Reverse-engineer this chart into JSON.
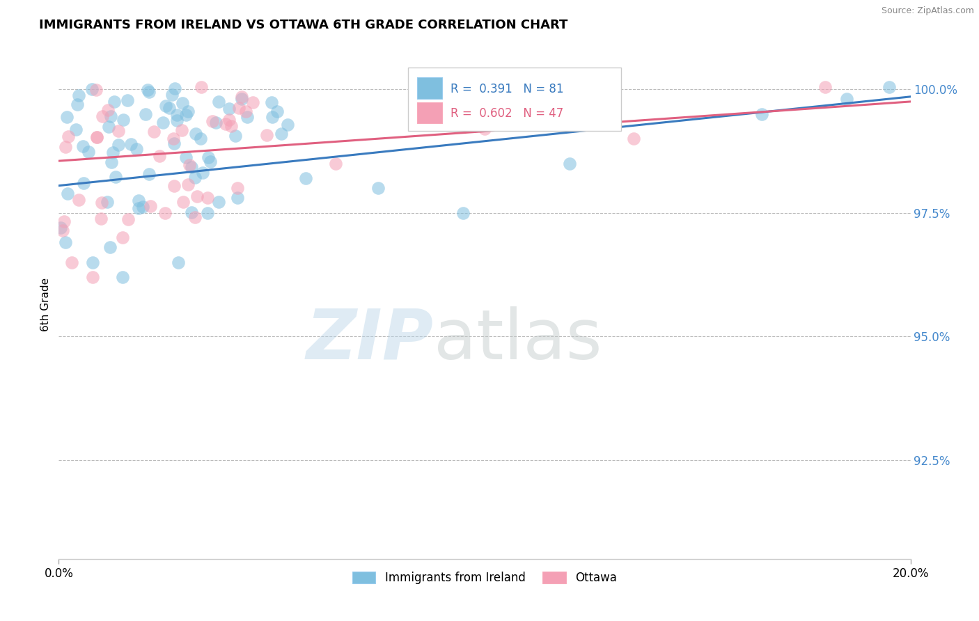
{
  "title": "IMMIGRANTS FROM IRELAND VS OTTAWA 6TH GRADE CORRELATION CHART",
  "source": "Source: ZipAtlas.com",
  "ylabel": "6th Grade",
  "ylabel_right_ticks": [
    100.0,
    97.5,
    95.0,
    92.5
  ],
  "ylabel_right_labels": [
    "100.0%",
    "97.5%",
    "95.0%",
    "92.5%"
  ],
  "xmin": 0.0,
  "xmax": 20.0,
  "ymin": 90.5,
  "ymax": 100.8,
  "blue_R": 0.391,
  "blue_N": 81,
  "pink_R": 0.602,
  "pink_N": 47,
  "blue_color": "#7fbfdf",
  "pink_color": "#f4a0b5",
  "blue_line_color": "#3a7bbf",
  "pink_line_color": "#e06080",
  "tick_label_color": "#4488cc",
  "legend_label_blue": "Immigrants from Ireland",
  "legend_label_pink": "Ottawa",
  "blue_line_y0": 98.05,
  "blue_line_y1": 99.85,
  "pink_line_y0": 98.55,
  "pink_line_y1": 99.75
}
